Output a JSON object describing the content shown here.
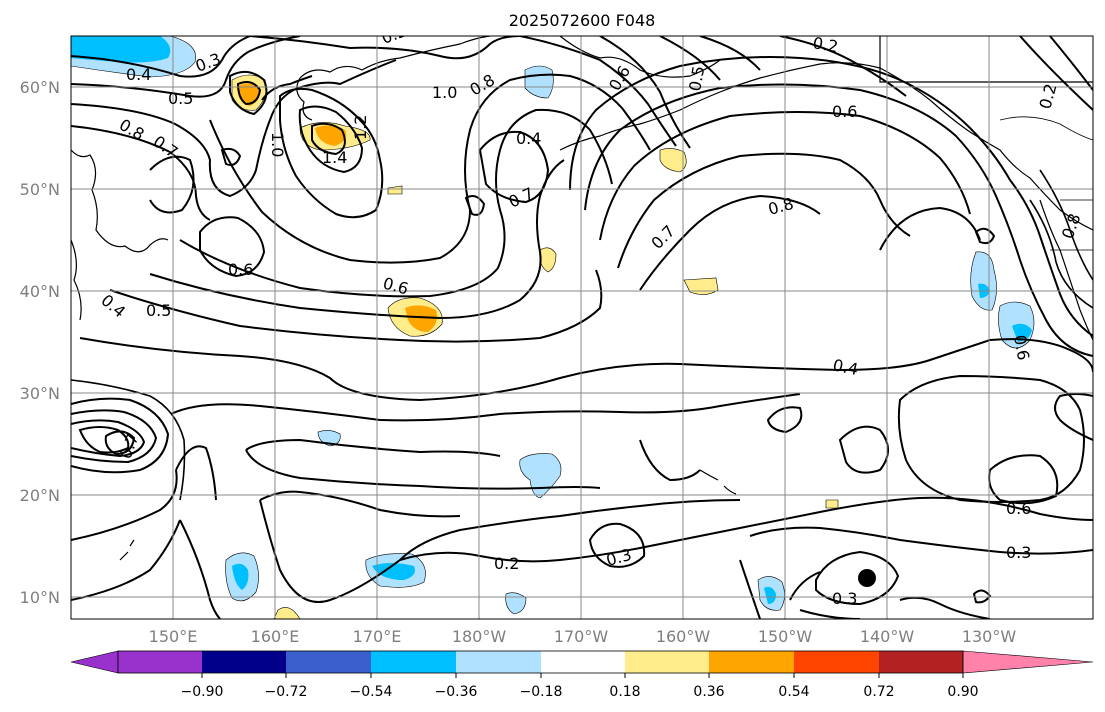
{
  "title": "2025072600 F048",
  "map": {
    "lat_labels": [
      "60°N",
      "50°N",
      "40°N",
      "30°N",
      "20°N",
      "10°N"
    ],
    "lon_labels": [
      "150°E",
      "160°E",
      "170°E",
      "180°W",
      "170°W",
      "160°W",
      "150°W",
      "140°W",
      "130°W"
    ],
    "contour_labels": [
      "0.4",
      "0.3",
      "0.5",
      "0.8",
      "0.7",
      "1.0",
      "1.4",
      "1.2",
      "0.8",
      "1.0",
      "0.4",
      "0.7",
      "0.2",
      "0.6",
      "0.8",
      "0.7",
      "0.6",
      "0.5",
      "0.6",
      "0.4",
      "0.4",
      "0.6",
      "0.3",
      "0.2",
      "0.3",
      "0.3",
      "0.2",
      "0.6",
      "0.8",
      "0.2",
      "0.6",
      "0.5",
      "0.7"
    ],
    "marker": "storm-center-dot"
  },
  "colorbar": {
    "colors": [
      "#9932cc",
      "#00008b",
      "#3a5fcd",
      "#00bfff",
      "#b0e2ff",
      "#ffffff",
      "#ffec8b",
      "#ffa500",
      "#ff4500",
      "#b22222",
      "#ff82ab"
    ],
    "tick_labels": [
      "−0.90",
      "−0.72",
      "−0.54",
      "−0.36",
      "−0.18",
      "0.18",
      "0.36",
      "0.54",
      "0.72",
      "0.90"
    ]
  }
}
